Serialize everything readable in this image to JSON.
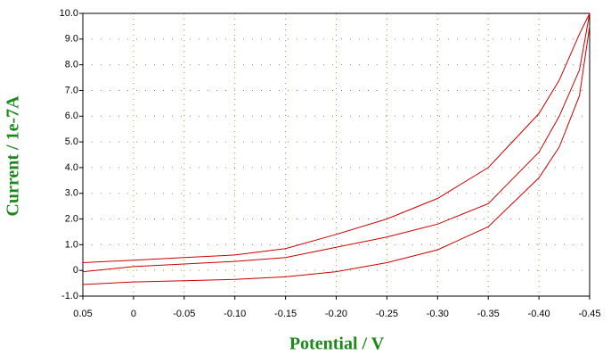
{
  "chart_data": {
    "type": "line",
    "x_label": "Potential / V",
    "y_label": "Current / 1e-7A",
    "xlim": [
      0.05,
      -0.45
    ],
    "ylim": [
      -1.0,
      10.0
    ],
    "xticks": [
      0.05,
      0,
      -0.05,
      {
        "value": -0.1,
        "label": "-0.10"
      },
      -0.15,
      {
        "value": -0.2,
        "label": "-0.20"
      },
      -0.25,
      {
        "value": -0.3,
        "label": "-0.30"
      },
      -0.35,
      {
        "value": -0.4,
        "label": "-0.40"
      },
      -0.45
    ],
    "yticks": [
      {
        "value": 10,
        "label": "10.0"
      },
      {
        "value": 9,
        "label": "9.0"
      },
      {
        "value": 8,
        "label": "8.0"
      },
      {
        "value": 7,
        "label": "7.0"
      },
      {
        "value": 6,
        "label": "6.0"
      },
      {
        "value": 5,
        "label": "5.0"
      },
      {
        "value": 4,
        "label": "4.0"
      },
      {
        "value": 3,
        "label": "3.0"
      },
      {
        "value": 2,
        "label": "2.0"
      },
      {
        "value": 1,
        "label": "1.0"
      },
      0,
      {
        "value": -1,
        "label": "-1.0"
      }
    ],
    "grid": true,
    "x": [
      0.05,
      0.0,
      -0.05,
      -0.1,
      -0.15,
      -0.2,
      -0.25,
      -0.3,
      -0.35,
      -0.4,
      -0.42,
      -0.44,
      -0.45
    ],
    "series": [
      {
        "color": "#cc0000",
        "values": [
          -0.55,
          -0.45,
          -0.4,
          -0.35,
          -0.25,
          -0.05,
          0.3,
          0.8,
          1.7,
          3.6,
          4.8,
          6.8,
          9.5
        ]
      },
      {
        "color": "#cc0000",
        "values": [
          -0.05,
          0.15,
          0.25,
          0.35,
          0.5,
          0.9,
          1.3,
          1.8,
          2.6,
          4.6,
          6.0,
          7.8,
          10.0
        ]
      },
      {
        "color": "#cc0000",
        "values": [
          0.3,
          0.4,
          0.5,
          0.6,
          0.85,
          1.4,
          2.0,
          2.8,
          4.0,
          6.1,
          7.4,
          9.2,
          10.0
        ]
      }
    ]
  }
}
